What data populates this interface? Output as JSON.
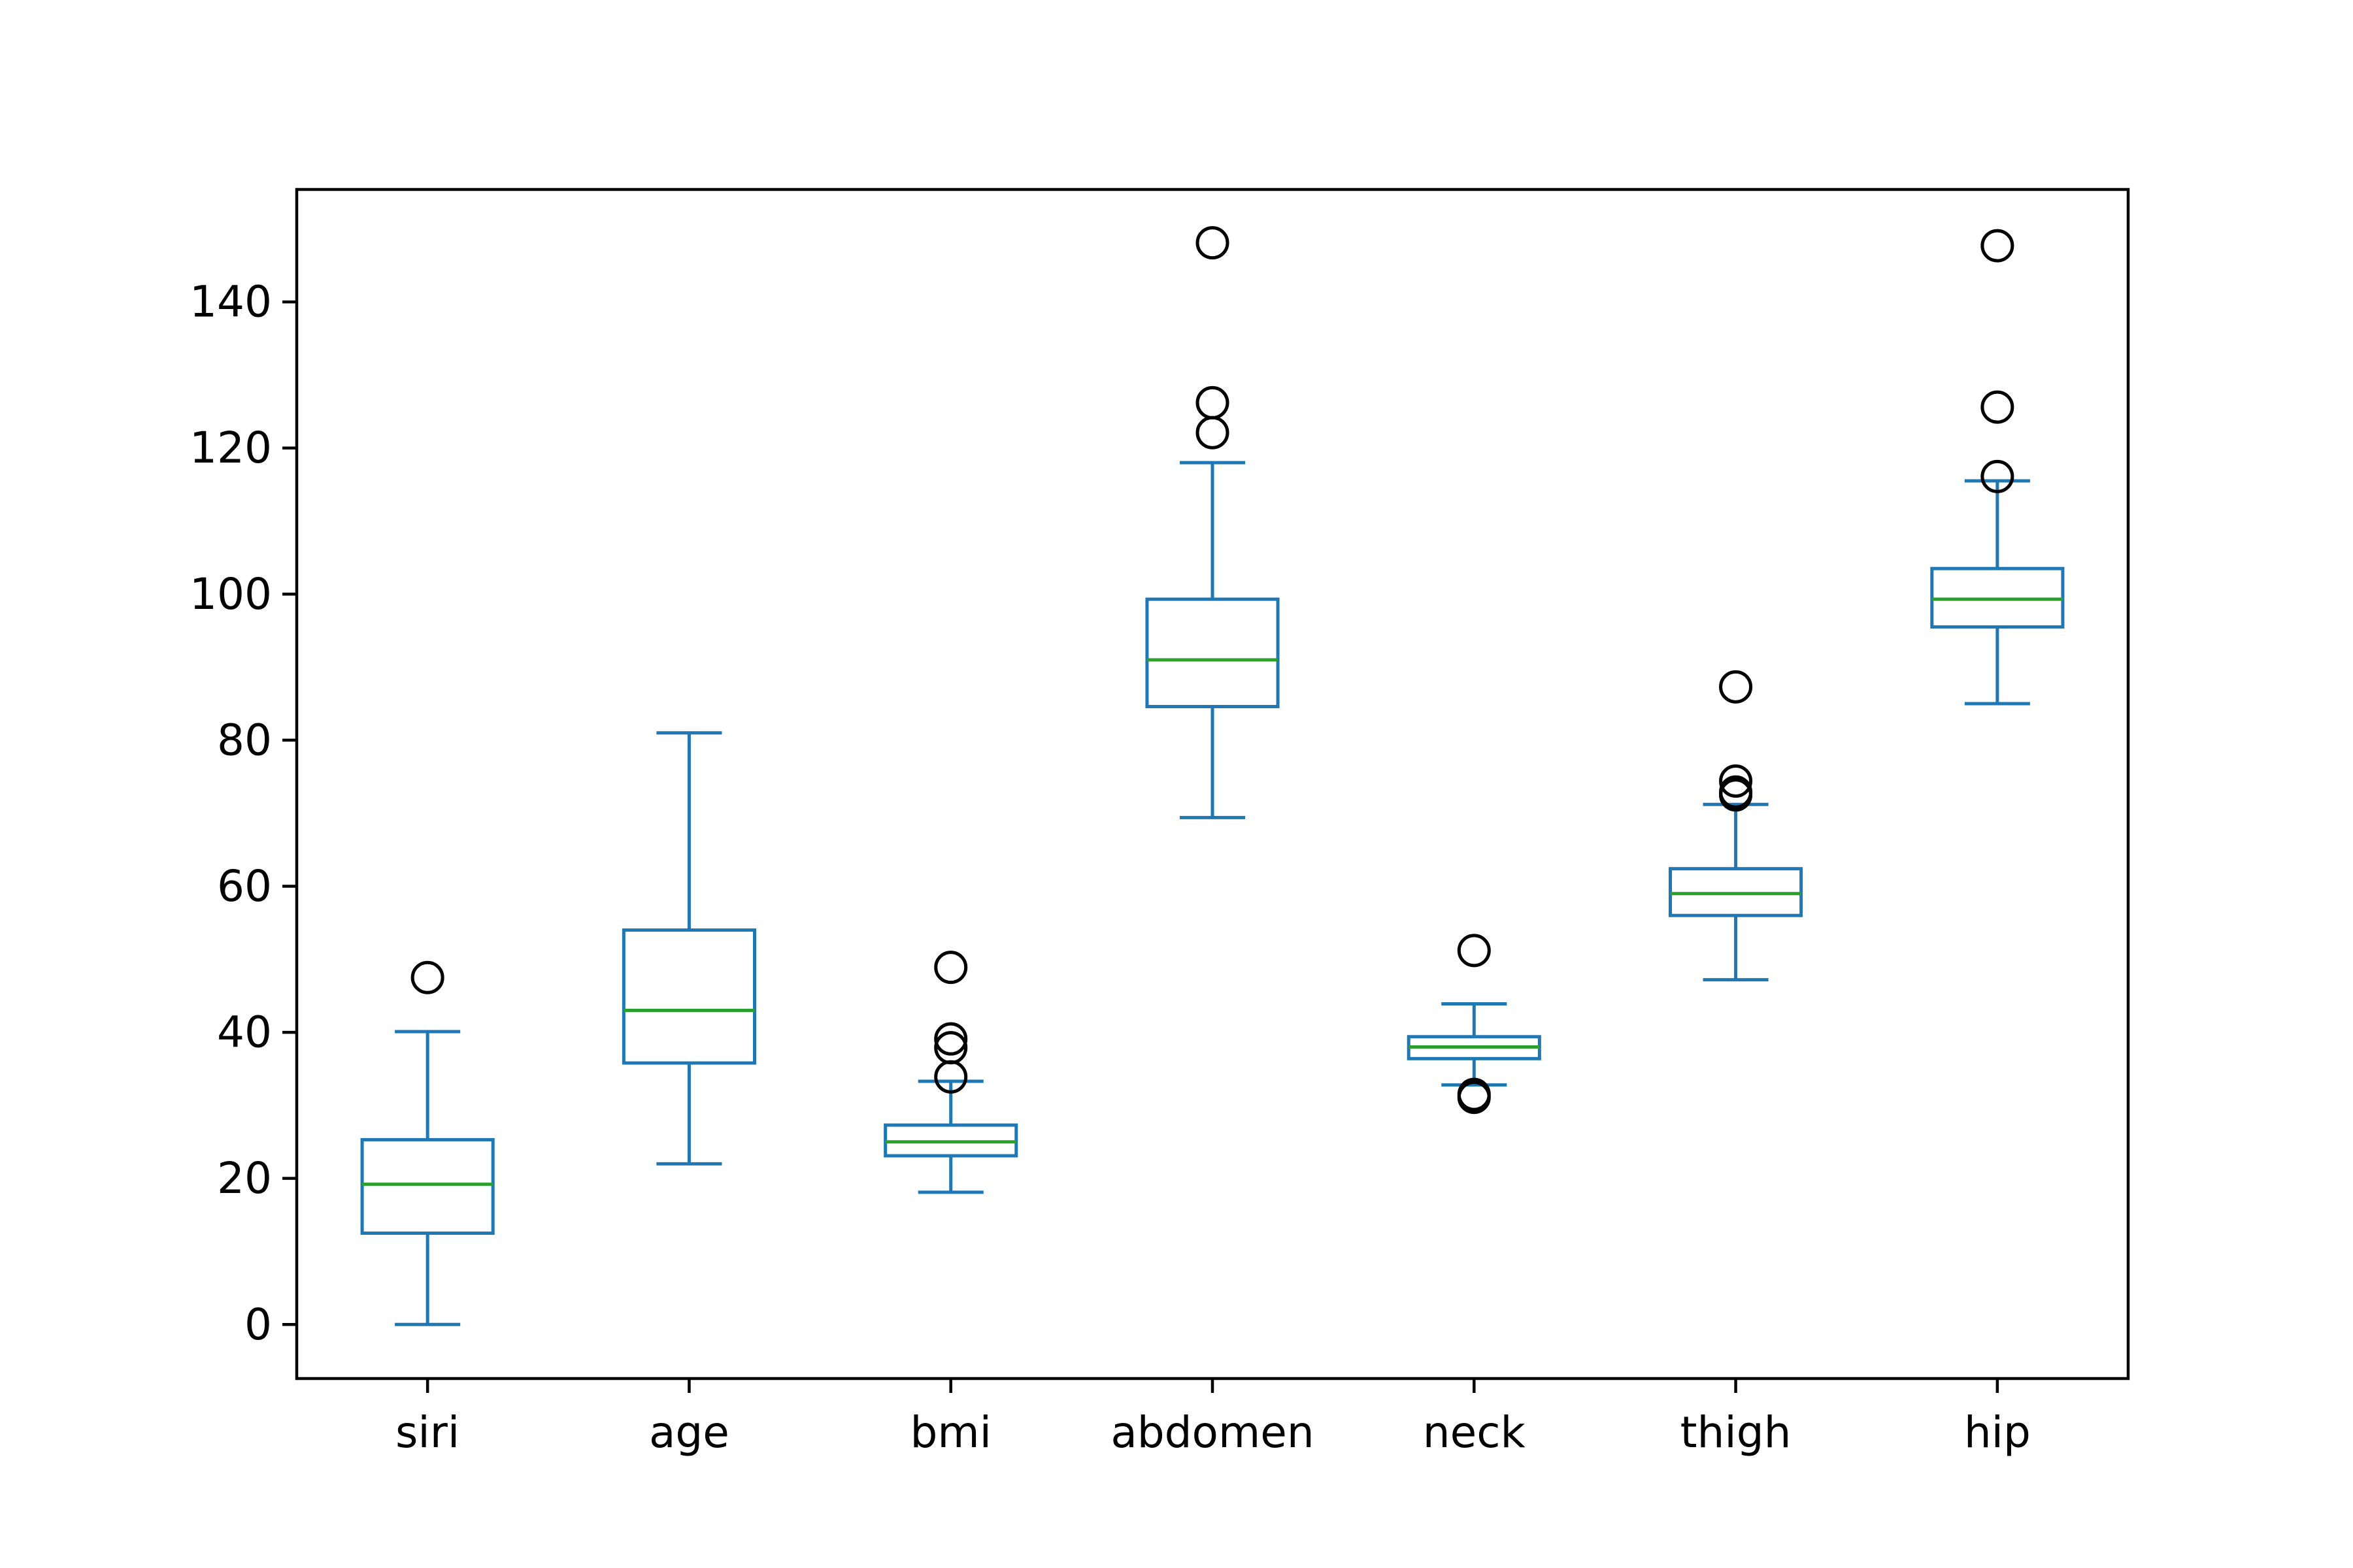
{
  "chart_data": {
    "type": "box",
    "title": "",
    "xlabel": "",
    "ylabel": "",
    "ylim": [
      -7.4,
      155.4
    ],
    "yticks": [
      0,
      20,
      40,
      60,
      80,
      100,
      120,
      140
    ],
    "grid": false,
    "legend": "none",
    "colors": {
      "box": "#1f77b4",
      "median": "#2ca02c",
      "flier": "#000000",
      "axes": "#000000"
    },
    "categories": [
      "siri",
      "age",
      "bmi",
      "abdomen",
      "neck",
      "thigh",
      "hip"
    ],
    "boxes": [
      {
        "name": "siri",
        "whisker_low": 0,
        "q1": 12.5,
        "median": 19.2,
        "q3": 25.3,
        "whisker_high": 40.1,
        "fliers": [
          47.5
        ]
      },
      {
        "name": "age",
        "whisker_low": 22,
        "q1": 35.8,
        "median": 43,
        "q3": 54,
        "whisker_high": 81,
        "fliers": []
      },
      {
        "name": "bmi",
        "whisker_low": 18.1,
        "q1": 23.1,
        "median": 25,
        "q3": 27.3,
        "whisker_high": 33.3,
        "fliers": [
          33.9,
          37.9,
          39.1,
          48.9
        ]
      },
      {
        "name": "abdomen",
        "whisker_low": 69.4,
        "q1": 84.6,
        "median": 91,
        "q3": 99.3,
        "whisker_high": 118,
        "fliers": [
          122.1,
          126.2,
          148.1
        ]
      },
      {
        "name": "neck",
        "whisker_low": 32.8,
        "q1": 36.4,
        "median": 38,
        "q3": 39.4,
        "whisker_high": 43.9,
        "fliers": [
          31.1,
          31.5,
          51.2
        ]
      },
      {
        "name": "thigh",
        "whisker_low": 47.2,
        "q1": 56,
        "median": 59,
        "q3": 62.4,
        "whisker_high": 71.2,
        "fliers": [
          72.5,
          72.9,
          74.4,
          87.3
        ]
      },
      {
        "name": "hip",
        "whisker_low": 85,
        "q1": 95.5,
        "median": 99.3,
        "q3": 103.5,
        "whisker_high": 115.5,
        "fliers": [
          116.1,
          125.6,
          147.7
        ]
      }
    ]
  }
}
